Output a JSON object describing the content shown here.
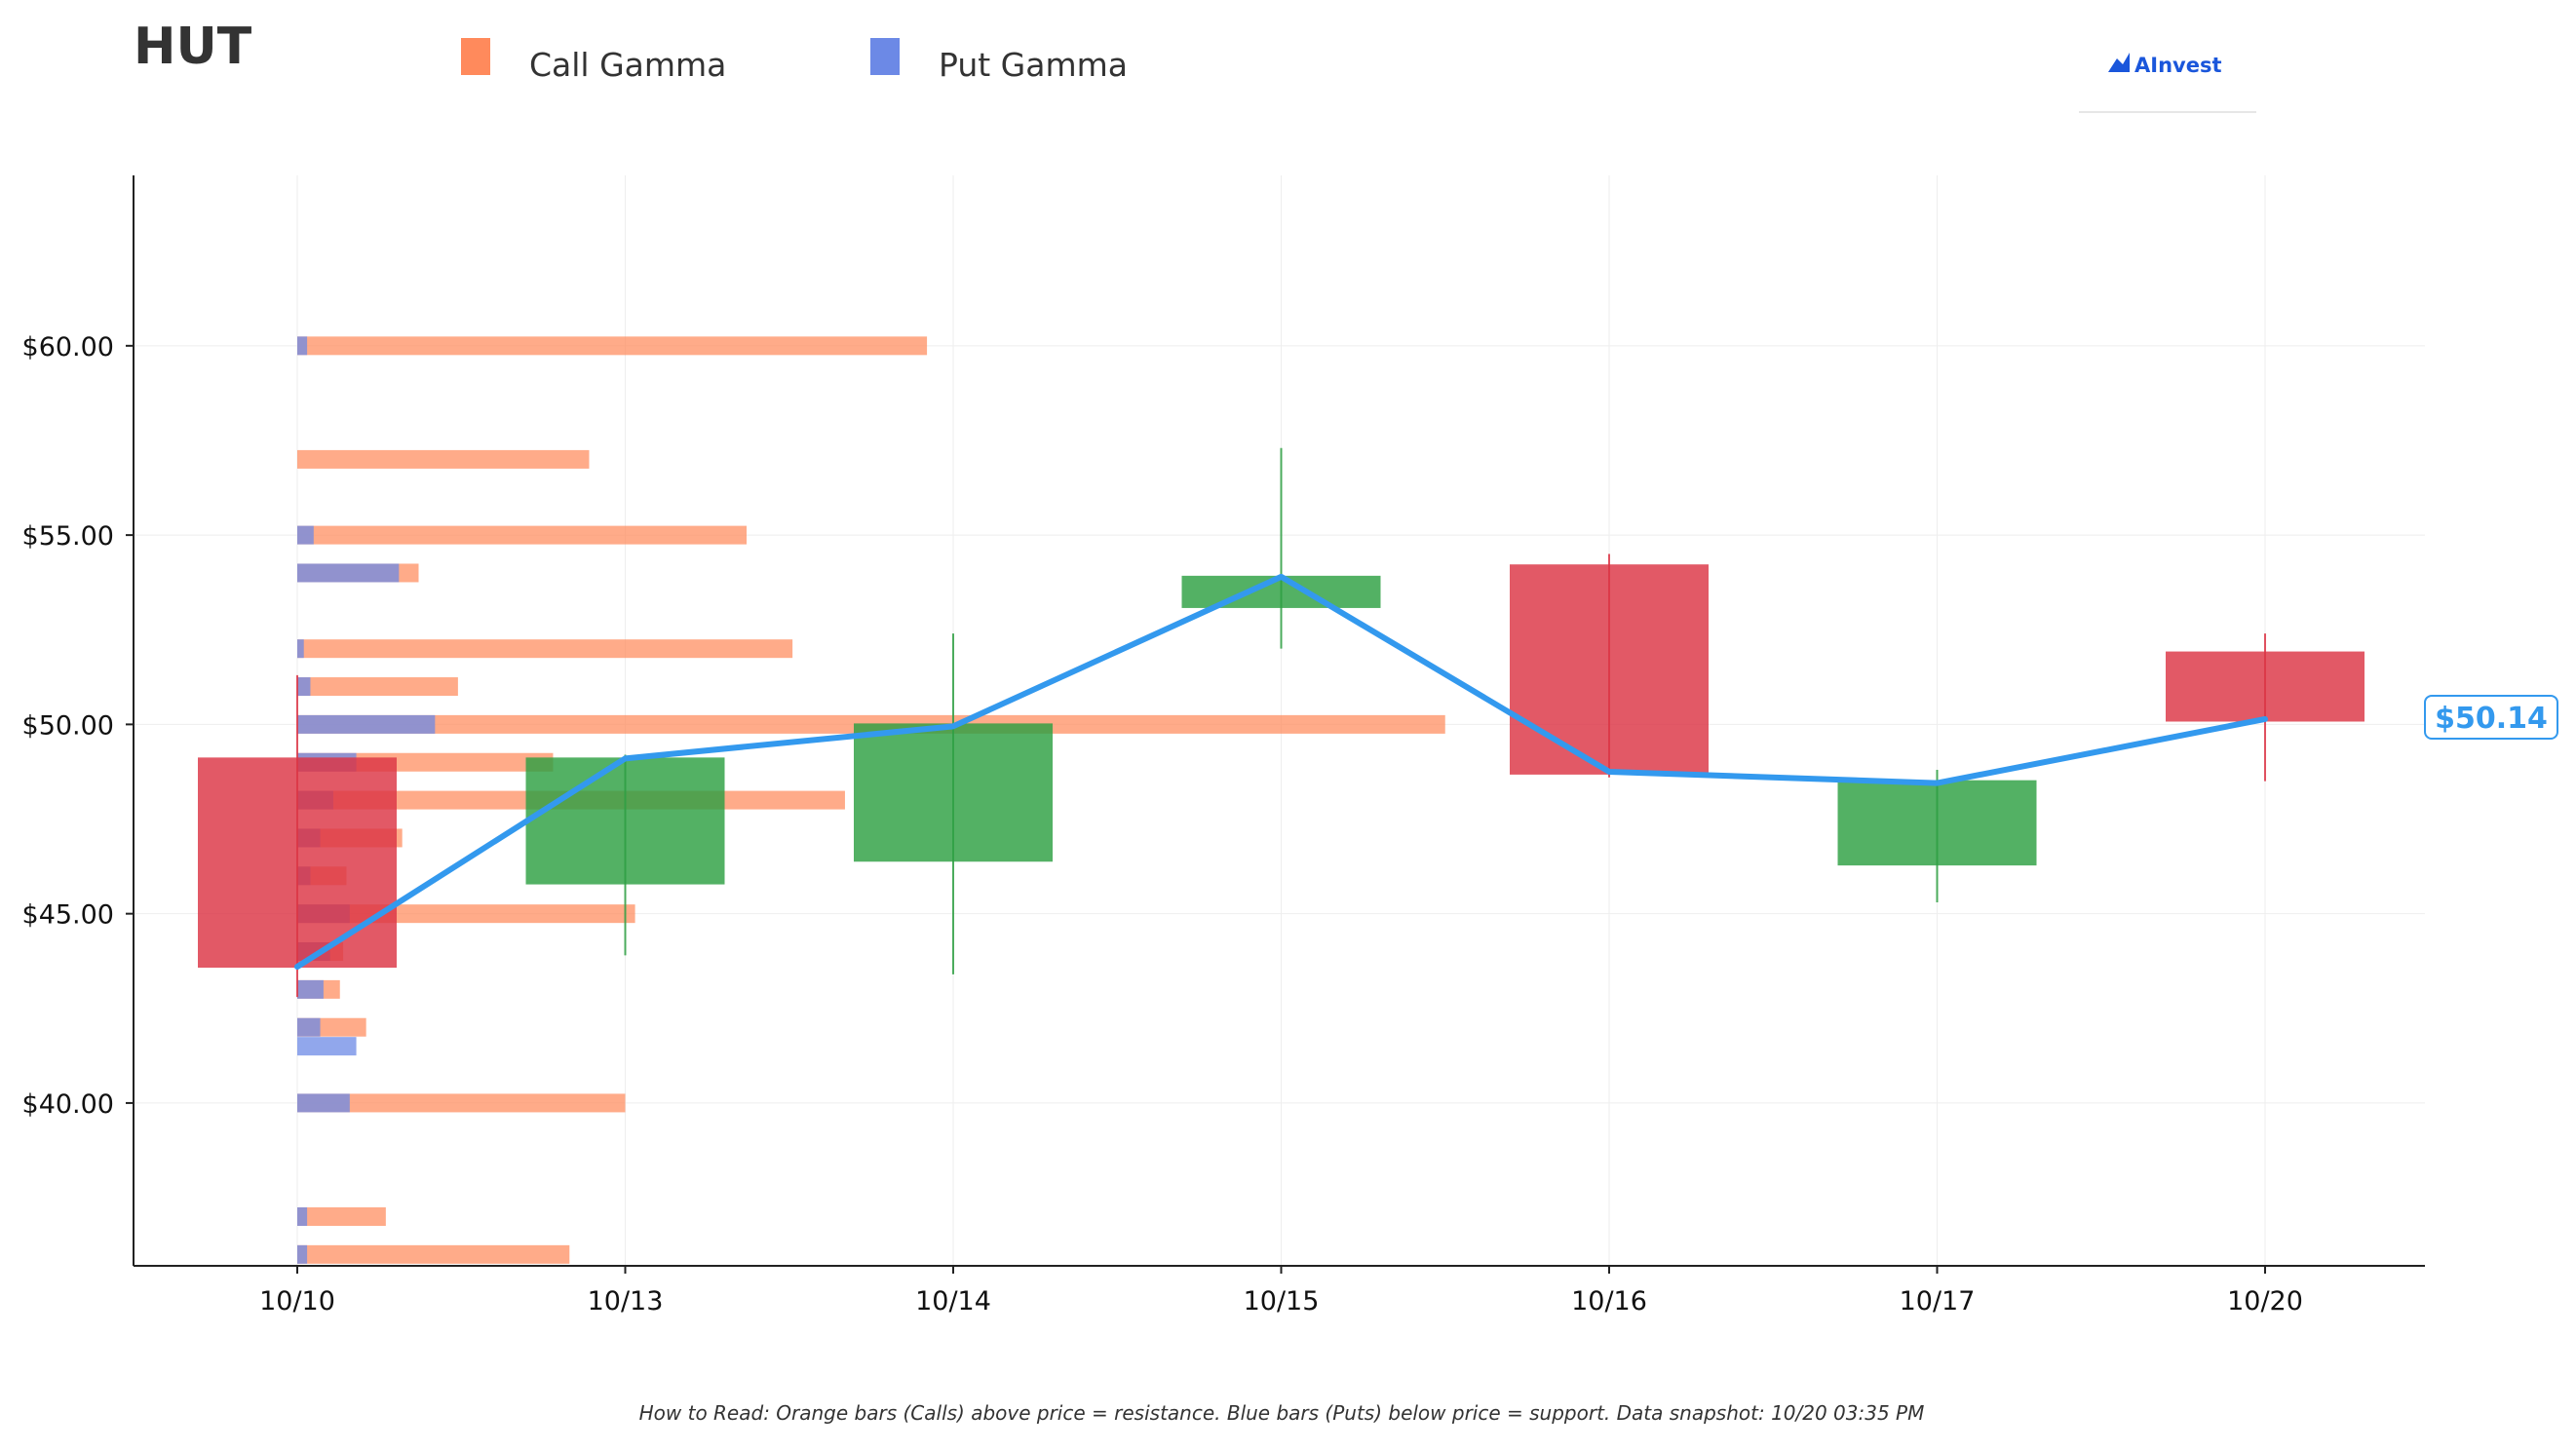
{
  "header": {
    "ticker": "HUT",
    "brand": "AInvest"
  },
  "footer": {
    "note": "How to Read: Orange bars (Calls) above price = resistance. Blue bars (Puts) below price = support. Data snapshot: 10/20 03:35 PM"
  },
  "colors": {
    "call": "#ff8a5c",
    "put": "#6c89e6",
    "up": "#2ea043",
    "down": "#dc3545",
    "price_line": "#3399ee",
    "axis": "#222222",
    "grid": "#eeeeee",
    "brand": "#1a56db"
  },
  "chart_data": {
    "type": "candlestick with horizontal gamma exposure bars",
    "legend": {
      "placement": "top",
      "entries": [
        {
          "name": "Call Gamma",
          "color": "#ff8a5c"
        },
        {
          "name": "Put Gamma",
          "color": "#6c89e6"
        }
      ]
    },
    "ylim": [
      35.7,
      64.5
    ],
    "yticks": [
      40,
      45,
      50,
      55,
      60
    ],
    "ytick_labels": [
      "$40.00",
      "$45.00",
      "$50.00",
      "$55.00",
      "$60.00"
    ],
    "grid": true,
    "categories": [
      "10/10",
      "10/13",
      "10/14",
      "10/15",
      "10/16",
      "10/17",
      "10/20"
    ],
    "candles": [
      {
        "date": "10/10",
        "open": 49.1,
        "high": 51.3,
        "low": 42.8,
        "close": 43.6
      },
      {
        "date": "10/13",
        "open": 45.8,
        "high": 49.2,
        "low": 43.9,
        "close": 49.1
      },
      {
        "date": "10/14",
        "open": 46.4,
        "high": 52.4,
        "low": 43.4,
        "close": 50.0
      },
      {
        "date": "10/15",
        "open": 53.1,
        "high": 57.3,
        "low": 52.0,
        "close": 53.9
      },
      {
        "date": "10/16",
        "open": 54.2,
        "high": 54.5,
        "low": 48.6,
        "close": 48.7
      },
      {
        "date": "10/17",
        "open": 46.3,
        "high": 48.8,
        "low": 45.3,
        "close": 48.5
      },
      {
        "date": "10/20",
        "open": 51.9,
        "high": 52.4,
        "low": 48.5,
        "close": 50.1
      }
    ],
    "price_line": {
      "points": [
        43.6,
        49.1,
        49.95,
        53.9,
        48.75,
        48.45,
        50.14
      ],
      "last_label": "$50.14"
    },
    "gamma_units_note": "relative length, 1.0 = one date interval",
    "gamma": [
      {
        "strike": 36,
        "call": 0.83,
        "put": 0.03
      },
      {
        "strike": 37,
        "call": 0.27,
        "put": 0.03
      },
      {
        "strike": 40,
        "call": 1.0,
        "put": 0.16
      },
      {
        "strike": 41.5,
        "call": 0.0,
        "put": 0.18
      },
      {
        "strike": 42,
        "call": 0.21,
        "put": 0.07
      },
      {
        "strike": 43,
        "call": 0.13,
        "put": 0.08
      },
      {
        "strike": 44,
        "call": 0.14,
        "put": 0.1
      },
      {
        "strike": 45,
        "call": 1.03,
        "put": 0.16
      },
      {
        "strike": 46,
        "call": 0.15,
        "put": 0.04
      },
      {
        "strike": 47,
        "call": 0.32,
        "put": 0.07
      },
      {
        "strike": 48,
        "call": 1.67,
        "put": 0.11
      },
      {
        "strike": 49,
        "call": 0.78,
        "put": 0.18
      },
      {
        "strike": 50,
        "call": 3.5,
        "put": 0.42
      },
      {
        "strike": 51,
        "call": 0.49,
        "put": 0.04
      },
      {
        "strike": 52,
        "call": 1.51,
        "put": 0.02
      },
      {
        "strike": 54,
        "call": 0.37,
        "put": 0.31
      },
      {
        "strike": 55,
        "call": 1.37,
        "put": 0.05
      },
      {
        "strike": 57,
        "call": 0.89,
        "put": 0.0
      },
      {
        "strike": 60,
        "call": 1.92,
        "put": 0.03
      }
    ]
  }
}
